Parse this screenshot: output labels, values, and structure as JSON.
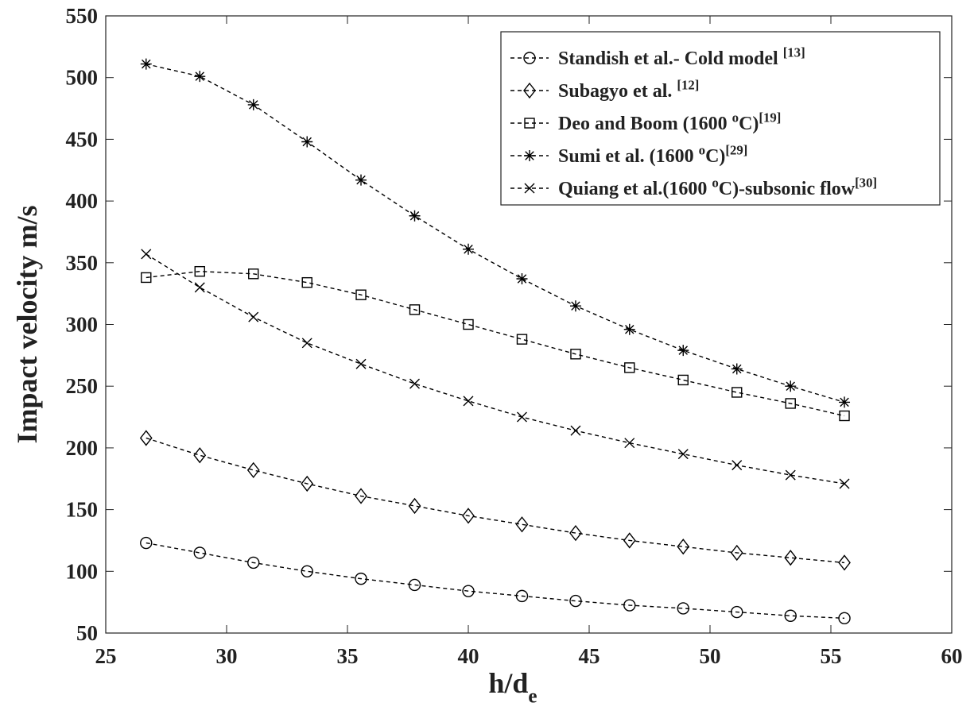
{
  "chart_data": {
    "type": "line",
    "xlabel": [
      "h/d",
      {
        "sub": "e"
      }
    ],
    "ylabel": "Impact velocity m/s",
    "x": [
      26.67,
      28.89,
      31.11,
      33.33,
      35.56,
      37.78,
      40,
      42.22,
      44.44,
      46.67,
      48.89,
      51.11,
      53.33,
      55.56
    ],
    "series": [
      {
        "name": [
          "Standish et al.- Cold model ",
          {
            "sup": "[13]"
          }
        ],
        "color": "#000000",
        "marker": "circle",
        "values": [
          123,
          115,
          107,
          100,
          94,
          89,
          84,
          80,
          76,
          72.5,
          70,
          67,
          64,
          62
        ]
      },
      {
        "name": [
          "Subagyo et al. ",
          {
            "sup": "[12]"
          }
        ],
        "color": "#000000",
        "marker": "diamond",
        "values": [
          208,
          194,
          182,
          171,
          161,
          153,
          145,
          138,
          131,
          125,
          120,
          115,
          111,
          107
        ]
      },
      {
        "name": [
          "Deo and Boom (1600 ",
          {
            "sup": "o"
          },
          "C)",
          {
            "sup": "[19]"
          }
        ],
        "color": "#000000",
        "marker": "square",
        "values": [
          338,
          343,
          341,
          334,
          324,
          312,
          300,
          288,
          276,
          265,
          255,
          245,
          236,
          226
        ]
      },
      {
        "name": [
          "Sumi et al. (1600 ",
          {
            "sup": "o"
          },
          "C)",
          {
            "sup": "[29]"
          }
        ],
        "color": "#000000",
        "marker": "asterisk",
        "values": [
          511,
          501,
          478,
          448,
          417,
          388,
          361,
          337,
          315,
          296,
          279,
          264,
          250,
          237
        ]
      },
      {
        "name": [
          "Quiang et al.(1600 ",
          {
            "sup": "o"
          },
          "C)-subsonic flow",
          {
            "sup": "[30]"
          }
        ],
        "color": "#000000",
        "marker": "x",
        "values": [
          357,
          330,
          306,
          285,
          268,
          252,
          238,
          225,
          214,
          204,
          195,
          186,
          178,
          171
        ]
      }
    ],
    "xlim": [
      25,
      60
    ],
    "xticks": [
      25,
      30,
      35,
      40,
      45,
      50,
      55,
      60
    ],
    "ylim": [
      50,
      550
    ],
    "yticks": [
      50,
      100,
      150,
      200,
      250,
      300,
      350,
      400,
      450,
      500,
      550
    ],
    "line_style": "dashed",
    "legend": "upper right",
    "grid": false
  }
}
